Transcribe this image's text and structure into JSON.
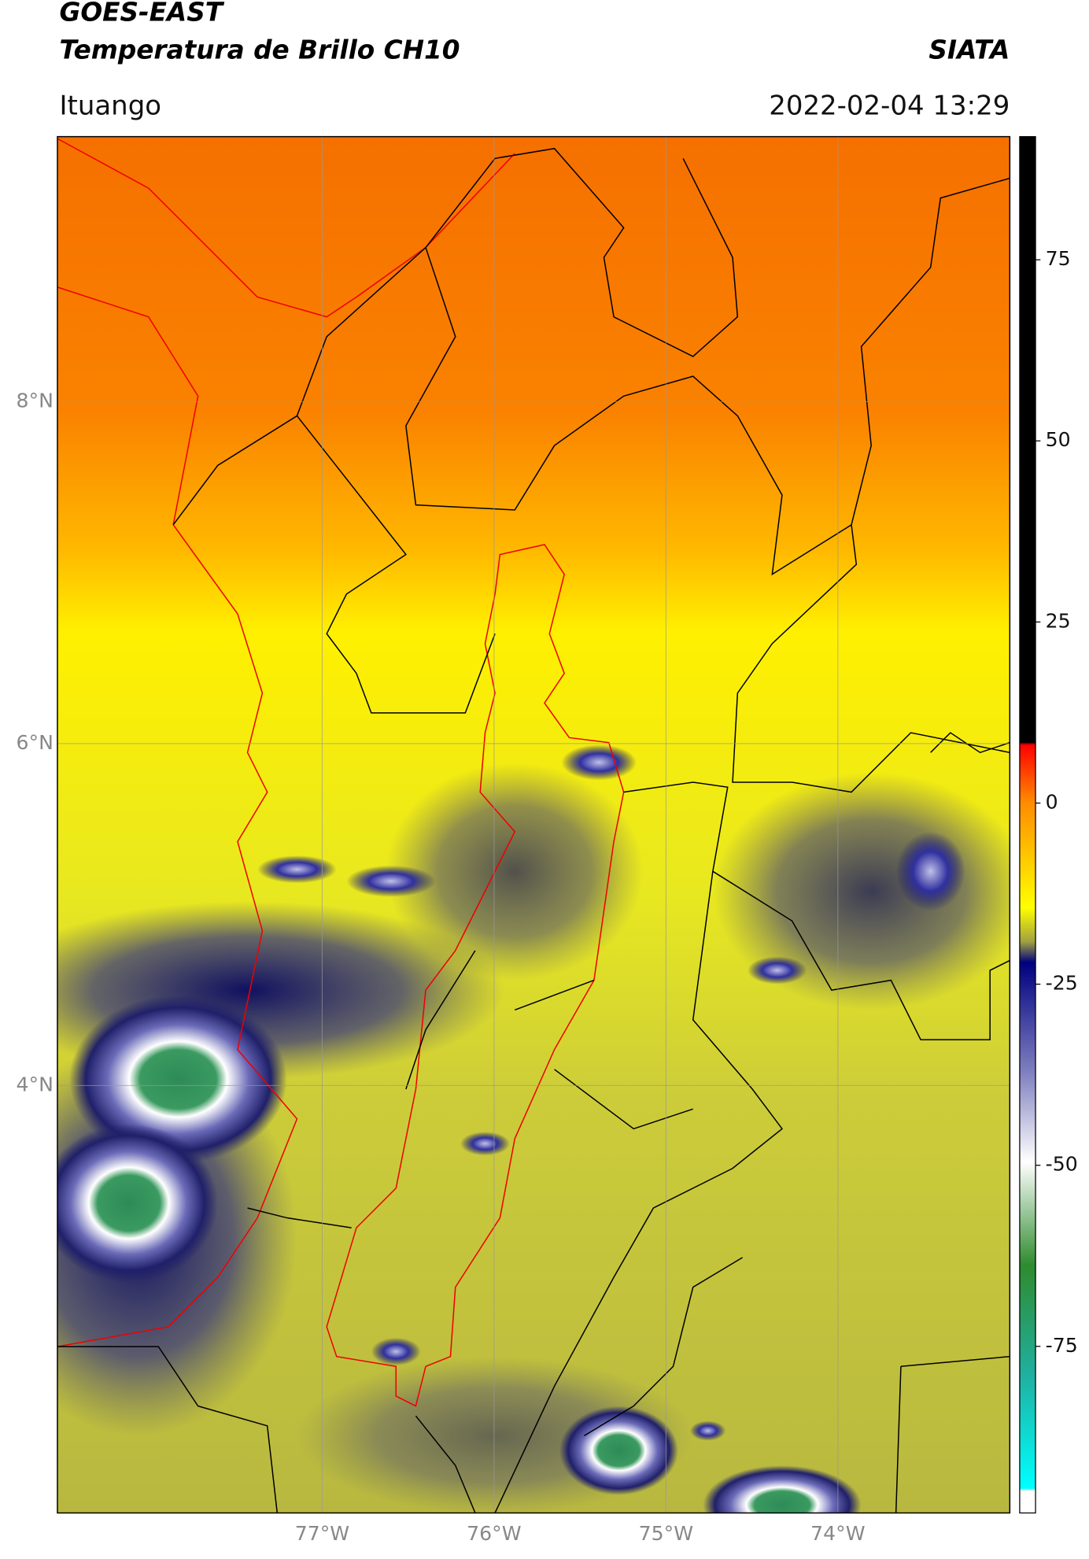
{
  "header": {
    "title": "GOES-EAST",
    "subtitle": "Temperatura de Brillo CH10",
    "source": "SIATA",
    "location": "Ituango",
    "datetime": "2022-02-04 13:29"
  },
  "map": {
    "xlim": [
      -78.54,
      -73.0
    ],
    "ylim": [
      1.5,
      9.55
    ],
    "xticks": [
      {
        "value": -77,
        "label": "77°W"
      },
      {
        "value": -76,
        "label": "76°W"
      },
      {
        "value": -75,
        "label": "75°W"
      },
      {
        "value": -74,
        "label": "74°W"
      }
    ],
    "yticks": [
      {
        "value": 8,
        "label": "8°N"
      },
      {
        "value": 6,
        "label": "6°N"
      },
      {
        "value": 4,
        "label": "4°N"
      }
    ],
    "grid": true
  },
  "colorbar": {
    "lim": [
      -98,
      92
    ],
    "ticks": [
      75,
      50,
      25,
      0,
      -25,
      -50,
      -75
    ]
  }
}
